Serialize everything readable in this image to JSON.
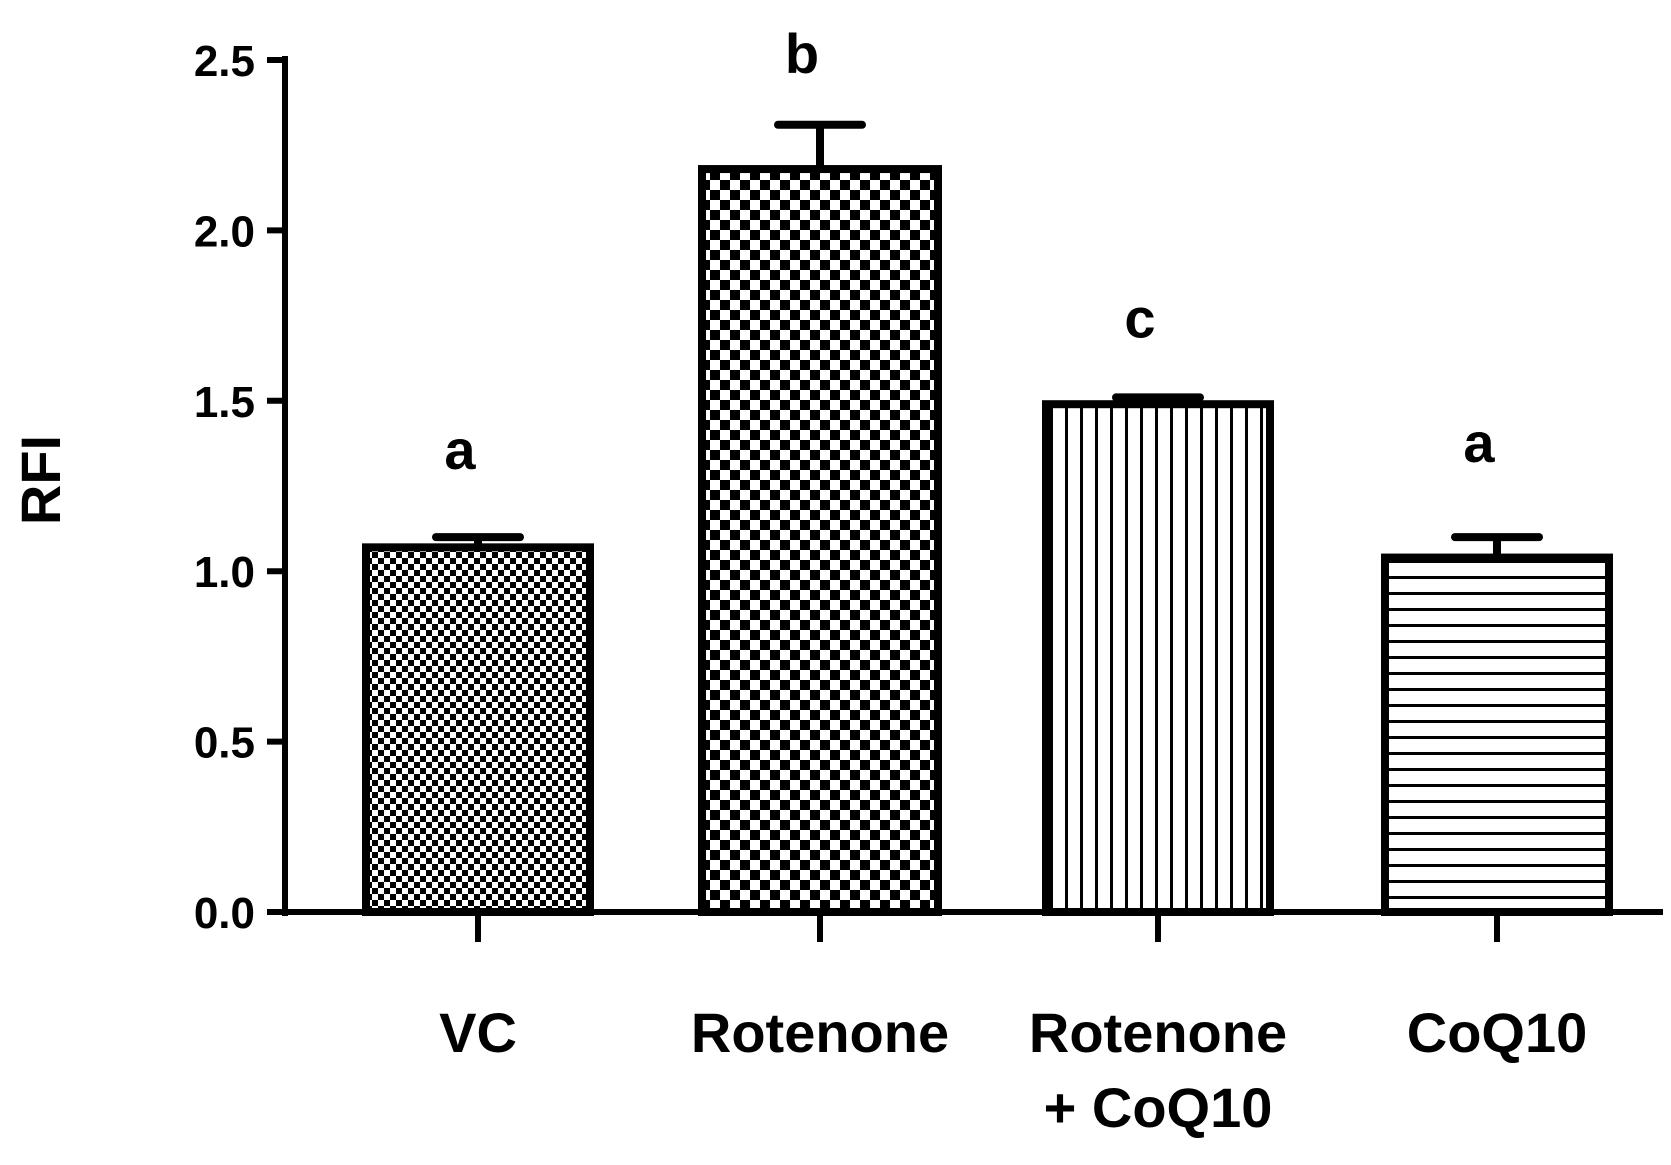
{
  "chart_data": {
    "type": "bar",
    "title": "",
    "xlabel": "",
    "ylabel": "RFI",
    "ylim": [
      0,
      2.5
    ],
    "yticks": [
      "0.0",
      "0.5",
      "1.0",
      "1.5",
      "2.0",
      "2.5"
    ],
    "grid": false,
    "legend": "none",
    "categories": [
      {
        "lines": [
          "VC"
        ]
      },
      {
        "lines": [
          "Rotenone"
        ]
      },
      {
        "lines": [
          "Rotenone",
          "+ CoQ10"
        ]
      },
      {
        "lines": [
          "CoQ10"
        ]
      }
    ],
    "values": [
      1.07,
      2.18,
      1.49,
      1.04
    ],
    "errors": [
      0.03,
      0.13,
      0.02,
      0.06
    ],
    "significance": [
      "a",
      "b",
      "c",
      "a"
    ],
    "fills": [
      "fine-checker",
      "checker",
      "vertical-lines",
      "horizontal-lines"
    ],
    "colors": {
      "stroke": "#000000",
      "fill": "#ffffff"
    }
  }
}
